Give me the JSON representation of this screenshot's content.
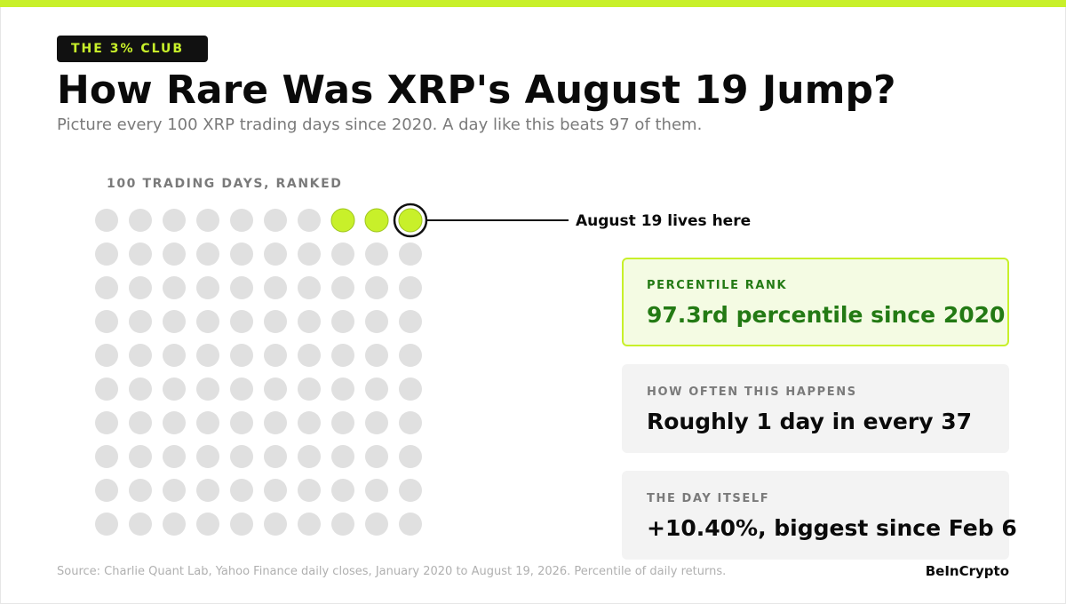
{
  "header": {
    "badge": "THE 3% CLUB",
    "title": "How Rare Was XRP's August 19 Jump?",
    "subtitle": "Picture every 100 XRP trading days since 2020. A day like this beats 97 of them."
  },
  "chart_data": {
    "type": "waffle",
    "title": "100 TRADING DAYS, RANKED",
    "rows": 10,
    "cols": 10,
    "total": 100,
    "highlighted_count": 3,
    "marked_rank_label": "August 19 lives here",
    "colors": {
      "highlight": "#c8f02a",
      "base": "#e0e0e0",
      "marker_ring": "#111111"
    }
  },
  "stats": [
    {
      "label": "PERCENTILE RANK",
      "value": "97.3rd percentile since 2020",
      "highlight": true
    },
    {
      "label": "HOW OFTEN THIS HAPPENS",
      "value": "Roughly 1 day in every 37",
      "highlight": false
    },
    {
      "label": "THE DAY ITSELF",
      "value": "+10.40%, biggest since Feb 6",
      "highlight": false
    }
  ],
  "footer": {
    "source": "Source: Charlie Quant Lab, Yahoo Finance daily closes, January 2020 to August 19, 2026. Percentile of daily returns.",
    "brand": "BeInCrypto"
  },
  "theme": {
    "accent": "#c8f02a",
    "accent_dark": "#237a14"
  }
}
